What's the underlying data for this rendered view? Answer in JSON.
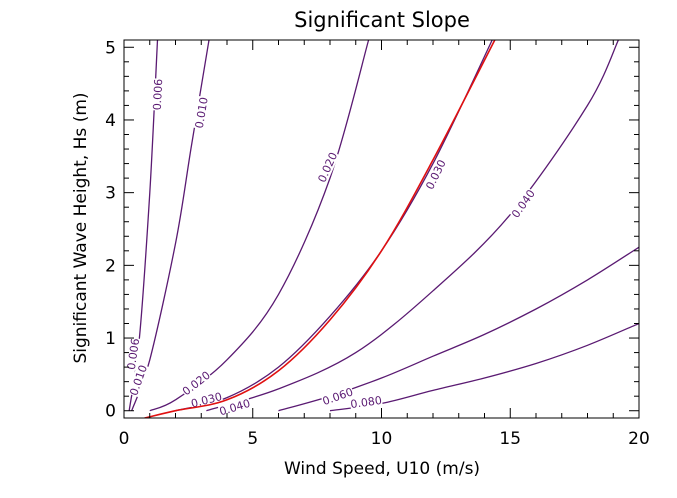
{
  "chart_data": {
    "type": "line",
    "title": "Significant Slope",
    "xlabel": "Wind Speed,  U10 (m/s)",
    "ylabel": "Significant Wave Height,   Hs   (m)",
    "xlim": [
      0,
      20
    ],
    "ylim": [
      -0.1,
      5.1
    ],
    "xticks": [
      "0",
      "5",
      "10",
      "15",
      "20"
    ],
    "yticks": [
      "0",
      "1",
      "2",
      "3",
      "4",
      "5"
    ],
    "grid": false,
    "colors": {
      "contour": "#5a1a72",
      "highlight": "#e01010",
      "axis": "#000000"
    },
    "series": [
      {
        "label": "0.006",
        "x": [
          0.2,
          0.6,
          1.0,
          1.3
        ],
        "y": [
          0.0,
          1.0,
          3.0,
          5.1
        ],
        "label_at": [
          [
            0.35,
            0.78
          ],
          [
            1.3,
            4.35
          ]
        ]
      },
      {
        "label": "0.010",
        "x": [
          0.3,
          1.0,
          2.0,
          2.6,
          3.3
        ],
        "y": [
          0.0,
          0.7,
          2.3,
          3.6,
          5.1
        ],
        "label_at": [
          [
            0.55,
            0.42
          ],
          [
            3.0,
            4.1
          ]
        ]
      },
      {
        "label": "0.020",
        "x": [
          1.0,
          2.0,
          4.0,
          6.0,
          8.0,
          9.5
        ],
        "y": [
          0.0,
          0.15,
          0.7,
          1.6,
          3.2,
          5.1
        ],
        "label_at": [
          [
            2.8,
            0.38
          ],
          [
            7.9,
            3.35
          ]
        ]
      },
      {
        "label": "0.030",
        "x": [
          2.0,
          4.0,
          6.0,
          8.0,
          10.0,
          12.0,
          14.3
        ],
        "y": [
          0.0,
          0.18,
          0.6,
          1.3,
          2.2,
          3.4,
          5.1
        ],
        "label_at": [
          [
            3.2,
            0.15
          ],
          [
            12.1,
            3.25
          ]
        ]
      },
      {
        "label": "0.040",
        "x": [
          3.2,
          6.0,
          9.0,
          12.0,
          15.0,
          18.0,
          19.2
        ],
        "y": [
          0.0,
          0.3,
          0.8,
          1.65,
          2.7,
          4.2,
          5.1
        ],
        "label_at": [
          [
            4.3,
            0.05
          ],
          [
            15.5,
            2.85
          ]
        ]
      },
      {
        "label": "0.060",
        "x": [
          6.0,
          8.0,
          10.0,
          12.0,
          14.0,
          16.0,
          18.0,
          20.0
        ],
        "y": [
          0.0,
          0.2,
          0.45,
          0.75,
          1.05,
          1.4,
          1.8,
          2.25
        ],
        "label_at": [
          [
            8.3,
            0.2
          ]
        ]
      },
      {
        "label": "0.080",
        "x": [
          8.0,
          10.0,
          12.0,
          14.0,
          16.0,
          18.0,
          20.0
        ],
        "y": [
          0.0,
          0.1,
          0.28,
          0.45,
          0.65,
          0.9,
          1.2
        ],
        "label_at": [
          [
            9.4,
            0.12
          ]
        ]
      }
    ],
    "highlight": {
      "x": [
        0.8,
        2.0,
        4.0,
        6.0,
        8.0,
        10.0,
        12.0,
        14.4
      ],
      "y": [
        -0.1,
        0.0,
        0.15,
        0.55,
        1.25,
        2.2,
        3.45,
        5.1
      ]
    }
  }
}
